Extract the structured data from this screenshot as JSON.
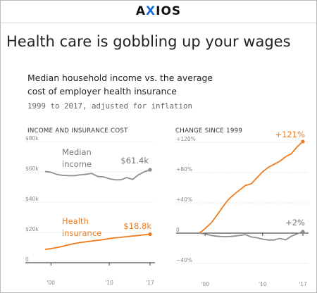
{
  "brand": {
    "logo_prefix": "A",
    "logo_x": "X",
    "logo_suffix": "IOS",
    "accent": "#1a6ed8"
  },
  "headline": "Health care is gobbling up your wages",
  "subtitle": "Median household income vs. the average cost of employer health insurance",
  "note": "1999 to 2017, adjusted for inflation",
  "colors": {
    "income": "#8f8f8f",
    "insurance": "#f07b1d"
  },
  "chart_data": [
    {
      "type": "line",
      "title": "INCOME AND INSURANCE COST",
      "ylim": [
        0,
        80000
      ],
      "y_ticks": [
        "$80k",
        "$60k",
        "$40k",
        "$20k",
        "0"
      ],
      "x_tick_labels": [
        "'00",
        "'10",
        "'17"
      ],
      "x": [
        1999,
        2000,
        2001,
        2002,
        2003,
        2004,
        2005,
        2006,
        2007,
        2008,
        2009,
        2010,
        2011,
        2012,
        2013,
        2014,
        2015,
        2016,
        2017
      ],
      "series": [
        {
          "name": "Median income",
          "label": "Median income",
          "end_label": "$61.4k",
          "values": [
            60200,
            59800,
            58300,
            57700,
            57500,
            57500,
            58000,
            58400,
            59000,
            57000,
            56700,
            55500,
            54700,
            54800,
            56200,
            55000,
            58000,
            60000,
            61400
          ]
        },
        {
          "name": "Health insurance",
          "label": "Health insurance",
          "end_label": "$18.8k",
          "values": [
            8800,
            9300,
            10000,
            10800,
            11800,
            12600,
            13300,
            13800,
            14300,
            14800,
            15300,
            15900,
            16400,
            16800,
            17200,
            17600,
            18000,
            18500,
            18800
          ]
        }
      ]
    },
    {
      "type": "line",
      "title": "CHANGE SINCE 1999",
      "ylim": [
        -40,
        120
      ],
      "y_ticks": [
        "+120%",
        "+80%",
        "+40%",
        "0",
        "−40%"
      ],
      "x_tick_labels": [
        "'00",
        "'10",
        "'17"
      ],
      "x": [
        1999,
        2000,
        2001,
        2002,
        2003,
        2004,
        2005,
        2006,
        2007,
        2008,
        2009,
        2010,
        2011,
        2012,
        2013,
        2014,
        2015,
        2016,
        2017
      ],
      "series": [
        {
          "name": "Health insurance",
          "end_label": "+121%",
          "values": [
            0,
            6,
            13,
            23,
            34,
            44,
            51,
            57,
            63,
            65,
            73,
            81,
            87,
            91,
            95,
            101,
            105,
            114,
            121
          ]
        },
        {
          "name": "Median income",
          "end_label": "+2%",
          "values": [
            0,
            -1,
            -3,
            -4,
            -4.5,
            -4.5,
            -4,
            -3,
            -2,
            -5,
            -6,
            -8,
            -9,
            -9,
            -7,
            -9,
            -4,
            -1,
            2
          ]
        }
      ]
    }
  ]
}
